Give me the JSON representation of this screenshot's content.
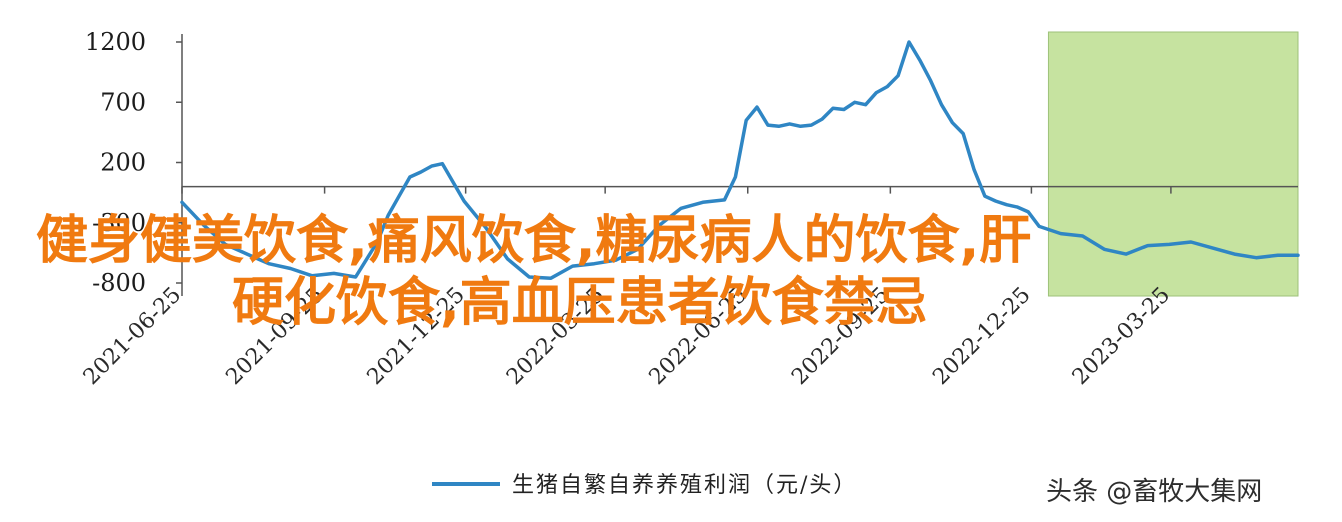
{
  "chart_data": {
    "type": "line",
    "xlabel": "",
    "ylabel": "",
    "ylim": [
      -800,
      1200
    ],
    "y_ticks": [
      "1200",
      "700",
      "200",
      "-300",
      "-800"
    ],
    "y_tick_values": [
      1200,
      700,
      200,
      -300,
      -800
    ],
    "x_tick_labels": [
      "2021-06-25",
      "2021-09-25",
      "2021-12-25",
      "2022-03-25",
      "2022-06-25",
      "2022-09-25",
      "2022-12-25",
      "2023-03-25"
    ],
    "x_range": [
      "2021-06-25",
      "2023-06-15"
    ],
    "grid": false,
    "highlight_region": {
      "x_from": "2023-01-05",
      "x_to": "2023-06-15",
      "color": "#c6e3a0"
    },
    "series": [
      {
        "name": "生猪自繁自养养殖利润（元/头）",
        "color": "#2f86c4",
        "x": [
          "2021-06-25",
          "2021-07-09",
          "2021-07-23",
          "2021-08-06",
          "2021-08-20",
          "2021-09-03",
          "2021-09-17",
          "2021-10-01",
          "2021-10-15",
          "2021-10-29",
          "2021-11-05",
          "2021-11-12",
          "2021-11-19",
          "2021-11-26",
          "2021-12-03",
          "2021-12-10",
          "2021-12-24",
          "2022-01-07",
          "2022-01-21",
          "2022-02-04",
          "2022-02-18",
          "2022-03-04",
          "2022-03-18",
          "2022-04-01",
          "2022-04-15",
          "2022-04-29",
          "2022-05-13",
          "2022-05-27",
          "2022-06-10",
          "2022-06-17",
          "2022-06-24",
          "2022-07-01",
          "2022-07-08",
          "2022-07-15",
          "2022-07-22",
          "2022-07-29",
          "2022-08-05",
          "2022-08-12",
          "2022-08-19",
          "2022-08-26",
          "2022-09-02",
          "2022-09-09",
          "2022-09-16",
          "2022-09-23",
          "2022-09-30",
          "2022-10-07",
          "2022-10-14",
          "2022-10-21",
          "2022-10-28",
          "2022-11-04",
          "2022-11-11",
          "2022-11-18",
          "2022-11-25",
          "2022-12-02",
          "2022-12-09",
          "2022-12-16",
          "2022-12-23",
          "2022-12-30",
          "2023-01-13",
          "2023-01-27",
          "2023-02-10",
          "2023-02-24",
          "2023-03-10",
          "2023-03-24",
          "2023-04-07",
          "2023-04-21",
          "2023-05-05",
          "2023-05-19",
          "2023-06-02",
          "2023-06-15"
        ],
        "values": [
          -130,
          -320,
          -480,
          -560,
          -640,
          -680,
          -740,
          -720,
          -750,
          -460,
          -240,
          -80,
          80,
          120,
          170,
          190,
          -120,
          -340,
          -600,
          -750,
          -760,
          -660,
          -640,
          -610,
          -520,
          -320,
          -180,
          -130,
          -110,
          80,
          550,
          660,
          510,
          500,
          520,
          500,
          510,
          560,
          650,
          640,
          700,
          680,
          780,
          830,
          920,
          1200,
          1050,
          880,
          680,
          530,
          440,
          140,
          -80,
          -120,
          -150,
          -170,
          -210,
          -330,
          -390,
          -410,
          -520,
          -560,
          -490,
          -480,
          -460,
          -510,
          -560,
          -590,
          -570,
          -570
        ]
      }
    ]
  },
  "legend": {
    "label": "生猪自繁自养养殖利润（元/头）",
    "color": "#2f86c4"
  },
  "watermark": "头条 @畜牧大集网",
  "overlay_title": {
    "line1": "健身健美饮食,痛风饮食,糖尿病人的饮食,肝",
    "line2": "硬化饮食,高血压患者饮食禁忌"
  }
}
